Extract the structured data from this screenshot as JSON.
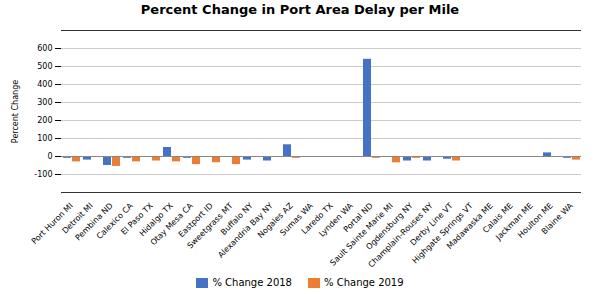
{
  "chart_data": {
    "type": "bar",
    "title": "Percent Change in Port Area Delay per Mile",
    "ylabel": "Percent Change",
    "categories": [
      "Port Huron MI",
      "Detroit MI",
      "Pembina ND",
      "Calexico CA",
      "El Paso TX",
      "Hidalgo TX",
      "Otay Mesa CA",
      "Eastport ID",
      "Sweetgrass MT",
      "Buffalo NY",
      "Alexandria Bay NY",
      "Nogales AZ",
      "Sumas WA",
      "Laredo TX",
      "Lynden WA",
      "Portal ND",
      "Sault Sainte Marie MI",
      "Ogdensburg NY",
      "Champlain-Rouses NY",
      "Derby Line VT",
      "Highgate Springs VT",
      "Madawaska ME",
      "Calais ME",
      "Jackman ME",
      "Houlton ME",
      "Blaine WA"
    ],
    "series": [
      {
        "name": "% Change 2018",
        "color": "#4472C4",
        "values": [
          -10,
          -20,
          -50,
          -10,
          -5,
          50,
          -10,
          -5,
          -5,
          -20,
          -25,
          65,
          -5,
          -5,
          -5,
          540,
          -5,
          -25,
          -25,
          -15,
          -5,
          -5,
          -5,
          -5,
          20,
          -10
        ]
      },
      {
        "name": "% Change 2019",
        "color": "#ED7D31",
        "values": [
          -30,
          -5,
          -55,
          -30,
          -25,
          -30,
          -45,
          -35,
          -45,
          -5,
          -5,
          -10,
          -5,
          -5,
          -5,
          -10,
          -35,
          -10,
          -5,
          -25,
          -5,
          -5,
          -5,
          -5,
          -5,
          -20
        ]
      }
    ],
    "ylim": [
      -200,
      700
    ],
    "yticks": [
      -100,
      0,
      100,
      200,
      300,
      400,
      500,
      600
    ],
    "grid": true,
    "legend": "bottom"
  }
}
